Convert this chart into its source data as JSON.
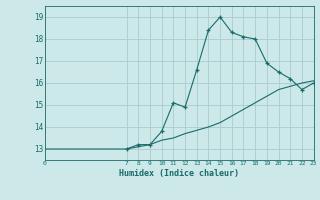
{
  "xlabel": "Humidex (Indice chaleur)",
  "background_color": "#cce8e8",
  "grid_color": "#aacccc",
  "line_color": "#1a6b6b",
  "xlim": [
    0,
    23
  ],
  "ylim": [
    12.5,
    19.5
  ],
  "xticks": [
    0,
    7,
    8,
    9,
    10,
    11,
    12,
    13,
    14,
    15,
    16,
    17,
    18,
    19,
    20,
    21,
    22,
    23
  ],
  "yticks": [
    13,
    14,
    15,
    16,
    17,
    18,
    19
  ],
  "curve1_x": [
    7,
    8,
    9,
    10,
    11,
    12,
    13,
    14,
    15,
    16,
    17,
    18,
    19,
    20,
    21,
    22,
    23
  ],
  "curve1_y": [
    13.0,
    13.2,
    13.2,
    13.8,
    15.1,
    14.9,
    16.6,
    18.4,
    19.0,
    18.3,
    18.1,
    18.0,
    16.9,
    16.5,
    16.2,
    15.7,
    16.0
  ],
  "curve2_x": [
    0,
    7,
    8,
    9,
    10,
    11,
    12,
    13,
    14,
    15,
    16,
    17,
    18,
    19,
    20,
    21,
    22,
    23
  ],
  "curve2_y": [
    13.0,
    13.0,
    13.1,
    13.2,
    13.4,
    13.5,
    13.7,
    13.85,
    14.0,
    14.2,
    14.5,
    14.8,
    15.1,
    15.4,
    15.7,
    15.85,
    16.0,
    16.1
  ],
  "figsize": [
    3.2,
    2.0
  ],
  "dpi": 100
}
